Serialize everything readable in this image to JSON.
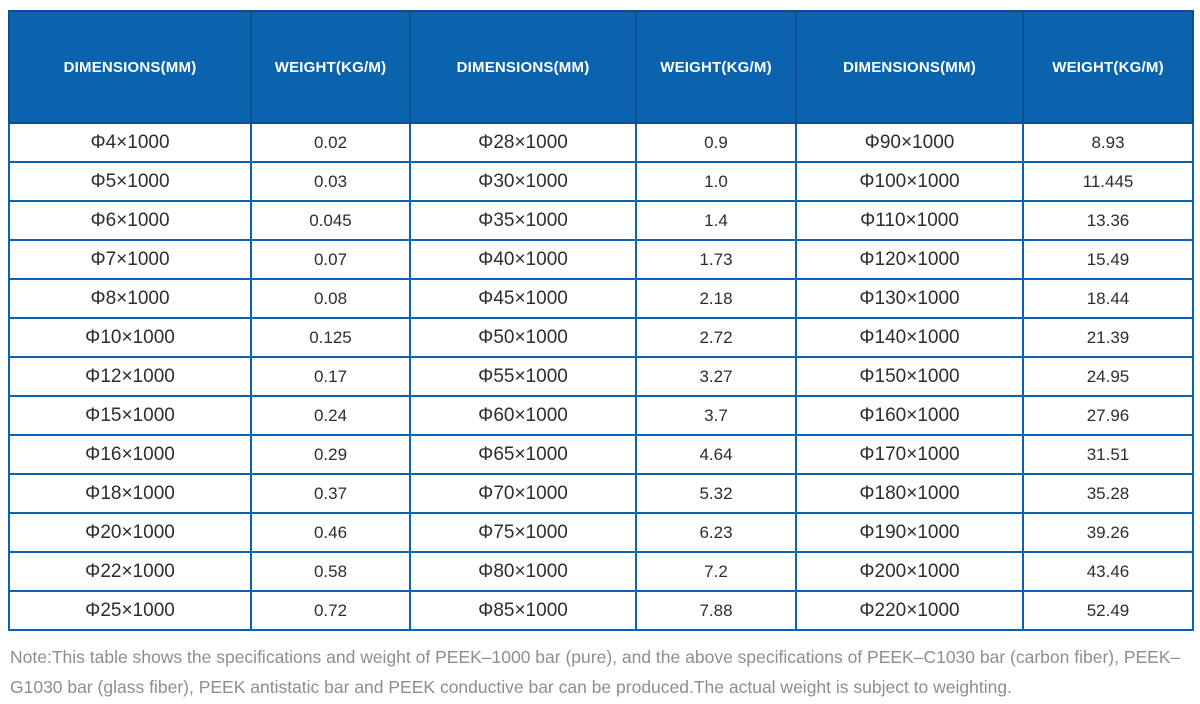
{
  "table": {
    "header_labels": [
      "DIMENSIONS(MM)",
      "WEIGHT(KG/M)",
      "DIMENSIONS(MM)",
      "WEIGHT(KG/M)",
      "DIMENSIONS(MM)",
      "WEIGHT(KG/M)"
    ],
    "rows": [
      [
        "Φ4×1000",
        "0.02",
        "Φ28×1000",
        "0.9",
        "Φ90×1000",
        "8.93"
      ],
      [
        "Φ5×1000",
        "0.03",
        "Φ30×1000",
        "1.0",
        "Φ100×1000",
        "11.445"
      ],
      [
        "Φ6×1000",
        "0.045",
        "Φ35×1000",
        "1.4",
        "Φ110×1000",
        "13.36"
      ],
      [
        "Φ7×1000",
        "0.07",
        "Φ40×1000",
        "1.73",
        "Φ120×1000",
        "15.49"
      ],
      [
        "Φ8×1000",
        "0.08",
        "Φ45×1000",
        "2.18",
        "Φ130×1000",
        "18.44"
      ],
      [
        "Φ10×1000",
        "0.125",
        "Φ50×1000",
        "2.72",
        "Φ140×1000",
        "21.39"
      ],
      [
        "Φ12×1000",
        "0.17",
        "Φ55×1000",
        "3.27",
        "Φ150×1000",
        "24.95"
      ],
      [
        "Φ15×1000",
        "0.24",
        "Φ60×1000",
        "3.7",
        "Φ160×1000",
        "27.96"
      ],
      [
        "Φ16×1000",
        "0.29",
        "Φ65×1000",
        "4.64",
        "Φ170×1000",
        "31.51"
      ],
      [
        "Φ18×1000",
        "0.37",
        "Φ70×1000",
        "5.32",
        "Φ180×1000",
        "35.28"
      ],
      [
        "Φ20×1000",
        "0.46",
        "Φ75×1000",
        "6.23",
        "Φ190×1000",
        "39.26"
      ],
      [
        "Φ22×1000",
        "0.58",
        "Φ80×1000",
        "7.2",
        "Φ200×1000",
        "43.46"
      ],
      [
        "Φ25×1000",
        "0.72",
        "Φ85×1000",
        "7.88",
        "Φ220×1000",
        "52.49"
      ]
    ]
  },
  "note": "Note:This table shows the specifications and weight of PEEK–1000 bar (pure), and the above specifications of PEEK–C1030 bar (carbon fiber), PEEK–G1030 bar (glass fiber), PEEK antistatic bar and PEEK conductive bar can be produced.The actual weight is subject to weighting.",
  "colors": {
    "header_bg": "#0b63ae",
    "header_border": "#084f93",
    "cell_border": "#0a62b4",
    "header_text": "#ffffff",
    "cell_text": "#2d2d2d",
    "note_text": "#8e8e8e"
  }
}
